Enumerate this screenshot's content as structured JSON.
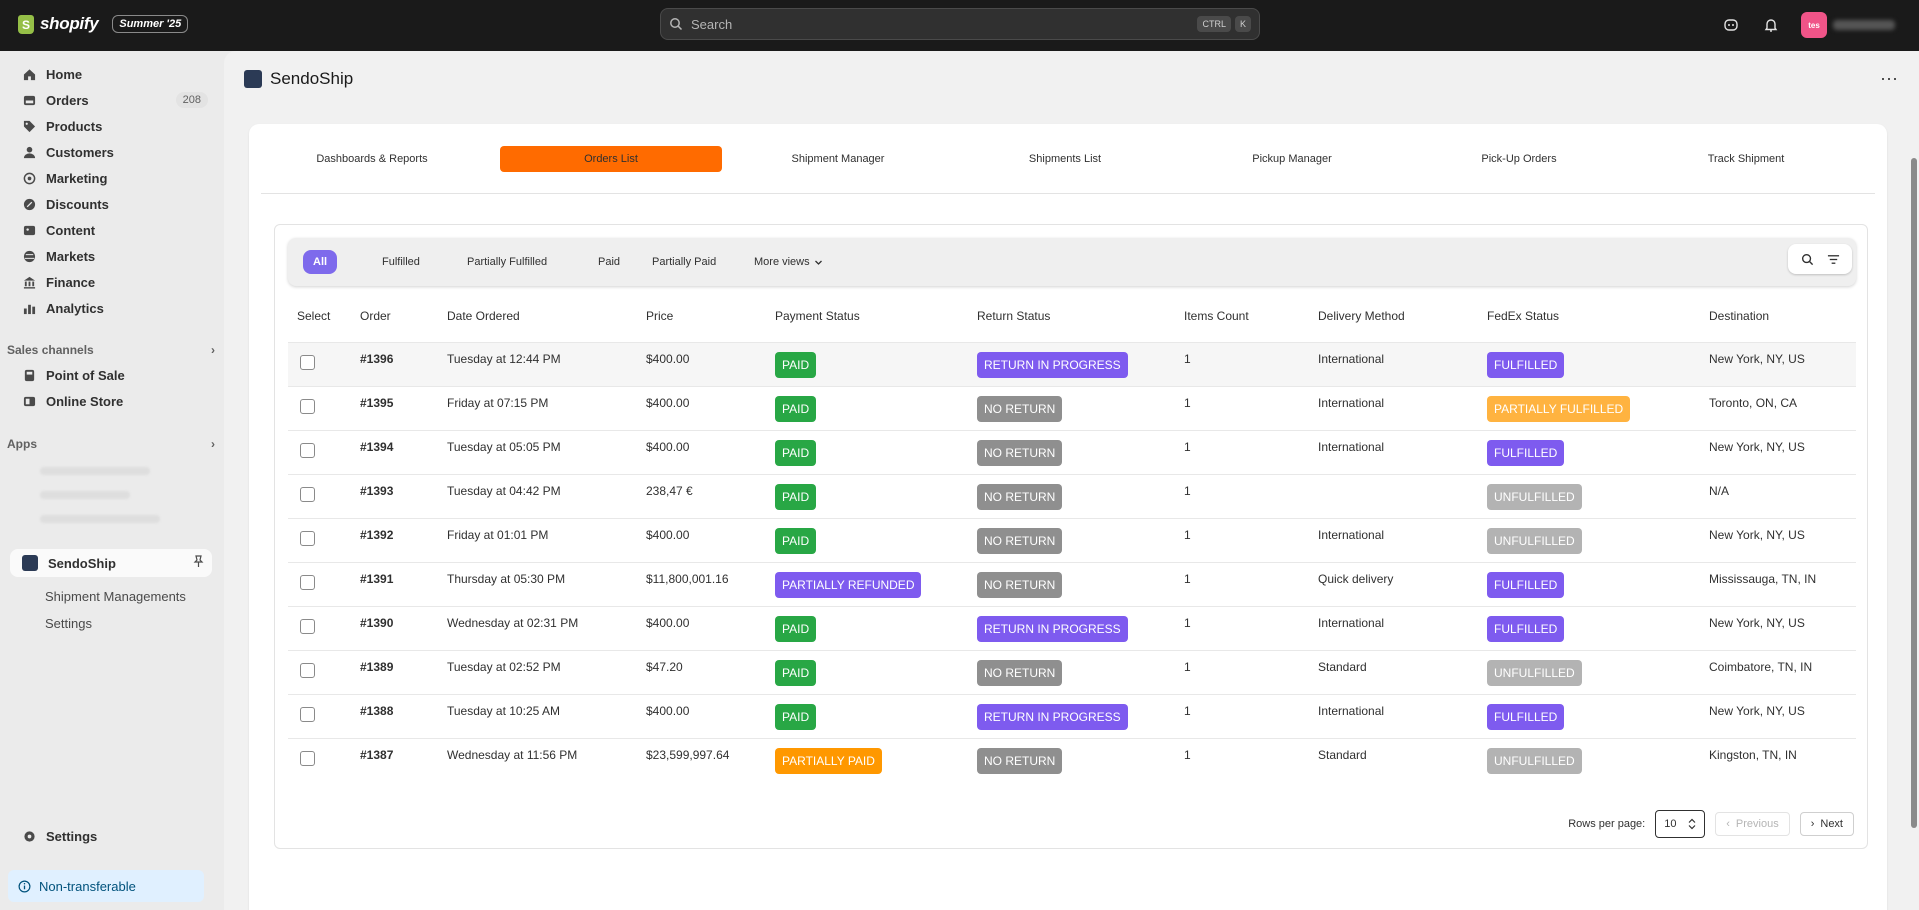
{
  "topbar": {
    "logo_text": "shopify",
    "edition": "Summer '25",
    "search_placeholder": "Search",
    "kbd1": "CTRL",
    "kbd2": "K",
    "avatar_initials": "tes"
  },
  "sidebar": {
    "items": [
      {
        "label": "Home",
        "icon": "home-icon"
      },
      {
        "label": "Orders",
        "icon": "orders-icon",
        "count": "208"
      },
      {
        "label": "Products",
        "icon": "tag-icon"
      },
      {
        "label": "Customers",
        "icon": "person-icon"
      },
      {
        "label": "Marketing",
        "icon": "target-icon"
      },
      {
        "label": "Discounts",
        "icon": "discount-icon"
      },
      {
        "label": "Content",
        "icon": "content-icon"
      },
      {
        "label": "Markets",
        "icon": "globe-icon"
      },
      {
        "label": "Finance",
        "icon": "bank-icon"
      },
      {
        "label": "Analytics",
        "icon": "chart-icon"
      }
    ],
    "sales_channels_label": "Sales channels",
    "sales_channels": [
      {
        "label": "Point of Sale",
        "icon": "pos-icon"
      },
      {
        "label": "Online Store",
        "icon": "store-icon"
      }
    ],
    "apps_label": "Apps",
    "active_app": "SendoShip",
    "app_sub_items": [
      "Shipment Managements",
      "Settings"
    ],
    "settings_label": "Settings",
    "non_transferable": "Non-transferable"
  },
  "app": {
    "title": "SendoShip",
    "tabs": [
      "Dashboards & Reports",
      "Orders List",
      "Shipment Manager",
      "Shipments List",
      "Pickup Manager",
      "Pick-Up Orders",
      "Track Shipment"
    ],
    "active_tab": "Orders List",
    "filters": [
      "All",
      "Fulfilled",
      "Partially Fulfilled",
      "Paid",
      "Partially Paid",
      "More views"
    ],
    "active_filter": "All"
  },
  "table": {
    "columns": [
      "Select",
      "Order",
      "Date Ordered",
      "Price",
      "Payment Status",
      "Return Status",
      "Items Count",
      "Delivery Method",
      "FedEx Status",
      "Destination"
    ],
    "rows": [
      {
        "order": "#1396",
        "date": "Tuesday at 12:44 PM",
        "price": "$400.00",
        "payment": "PAID",
        "return": "RETURN IN PROGRESS",
        "items": "1",
        "delivery": "International",
        "fedex": "FULFILLED",
        "destination": "New York, NY, US"
      },
      {
        "order": "#1395",
        "date": "Friday at 07:15 PM",
        "price": "$400.00",
        "payment": "PAID",
        "return": "NO RETURN",
        "items": "1",
        "delivery": "International",
        "fedex": "PARTIALLY FULFILLED",
        "destination": "Toronto, ON, CA"
      },
      {
        "order": "#1394",
        "date": "Tuesday at 05:05 PM",
        "price": "$400.00",
        "payment": "PAID",
        "return": "NO RETURN",
        "items": "1",
        "delivery": "International",
        "fedex": "FULFILLED",
        "destination": "New York, NY, US"
      },
      {
        "order": "#1393",
        "date": "Tuesday at 04:42 PM",
        "price": "238,47 €",
        "payment": "PAID",
        "return": "NO RETURN",
        "items": "1",
        "delivery": "",
        "fedex": "UNFULFILLED",
        "destination": "N/A"
      },
      {
        "order": "#1392",
        "date": "Friday at 01:01 PM",
        "price": "$400.00",
        "payment": "PAID",
        "return": "NO RETURN",
        "items": "1",
        "delivery": "International",
        "fedex": "UNFULFILLED",
        "destination": "New York, NY, US"
      },
      {
        "order": "#1391",
        "date": "Thursday at 05:30 PM",
        "price": "$11,800,001.16",
        "payment": "PARTIALLY REFUNDED",
        "return": "NO RETURN",
        "items": "1",
        "delivery": "Quick delivery",
        "fedex": "FULFILLED",
        "destination": "Mississauga, TN, IN"
      },
      {
        "order": "#1390",
        "date": "Wednesday at 02:31 PM",
        "price": "$400.00",
        "payment": "PAID",
        "return": "RETURN IN PROGRESS",
        "items": "1",
        "delivery": "International",
        "fedex": "FULFILLED",
        "destination": "New York, NY, US"
      },
      {
        "order": "#1389",
        "date": "Tuesday at 02:52 PM",
        "price": "$47.20",
        "payment": "PAID",
        "return": "NO RETURN",
        "items": "1",
        "delivery": "Standard",
        "fedex": "UNFULFILLED",
        "destination": "Coimbatore, TN, IN"
      },
      {
        "order": "#1388",
        "date": "Tuesday at 10:25 AM",
        "price": "$400.00",
        "payment": "PAID",
        "return": "RETURN IN PROGRESS",
        "items": "1",
        "delivery": "International",
        "fedex": "FULFILLED",
        "destination": "New York, NY, US"
      },
      {
        "order": "#1387",
        "date": "Wednesday at 11:56 PM",
        "price": "$23,599,997.64",
        "payment": "PARTIALLY PAID",
        "return": "NO RETURN",
        "items": "1",
        "delivery": "Standard",
        "fedex": "UNFULFILLED",
        "destination": "Kingston, TN, IN"
      }
    ]
  },
  "pagination": {
    "rows_per_page_label": "Rows per page:",
    "rows_per_page": "10",
    "previous": "Previous",
    "next": "Next"
  },
  "colors": {
    "accent_tab": "#ff6b00",
    "filter_active": "#7e6aec",
    "paid": "#28a745",
    "purple": "#7e5bef",
    "gray": "#8f8f8f",
    "light_gray": "#b3b3b3",
    "orange": "#ff9800",
    "amber": "#ffb340"
  }
}
